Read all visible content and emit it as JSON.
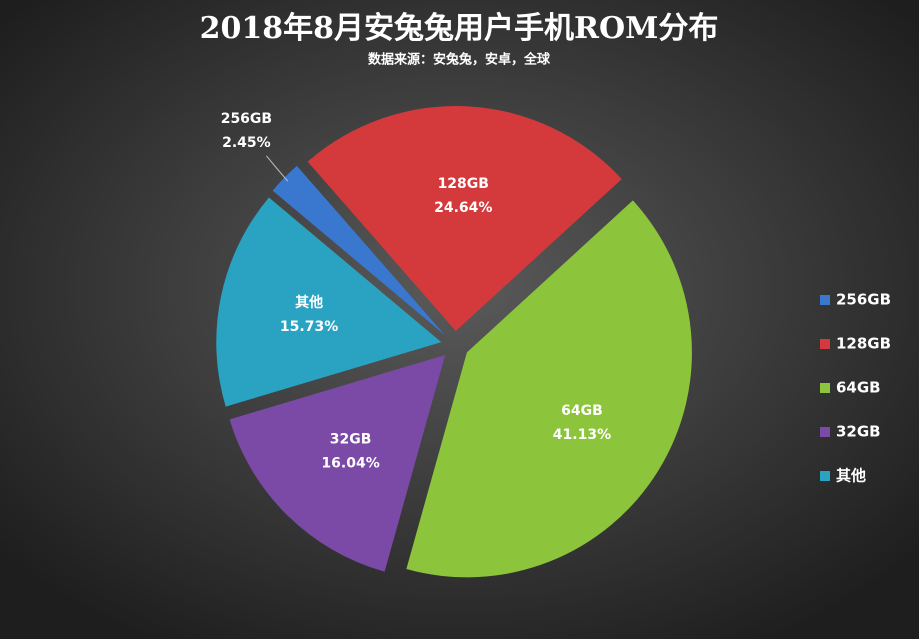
{
  "chart_data": {
    "type": "pie",
    "title": "2018年8月安兔兔用户手机ROM分布",
    "subtitle": "数据来源：安兔兔，安卓，全球",
    "categories": [
      "256GB",
      "128GB",
      "64GB",
      "32GB",
      "其他"
    ],
    "values": [
      2.45,
      24.64,
      41.13,
      16.04,
      15.73
    ],
    "value_labels": [
      "2.45%",
      "24.64%",
      "41.13%",
      "16.04%",
      "15.73%"
    ],
    "colors": [
      "#3a78d0",
      "#d43a3c",
      "#8cc43c",
      "#7a4aa6",
      "#2aa3c2"
    ],
    "legend": "right"
  }
}
